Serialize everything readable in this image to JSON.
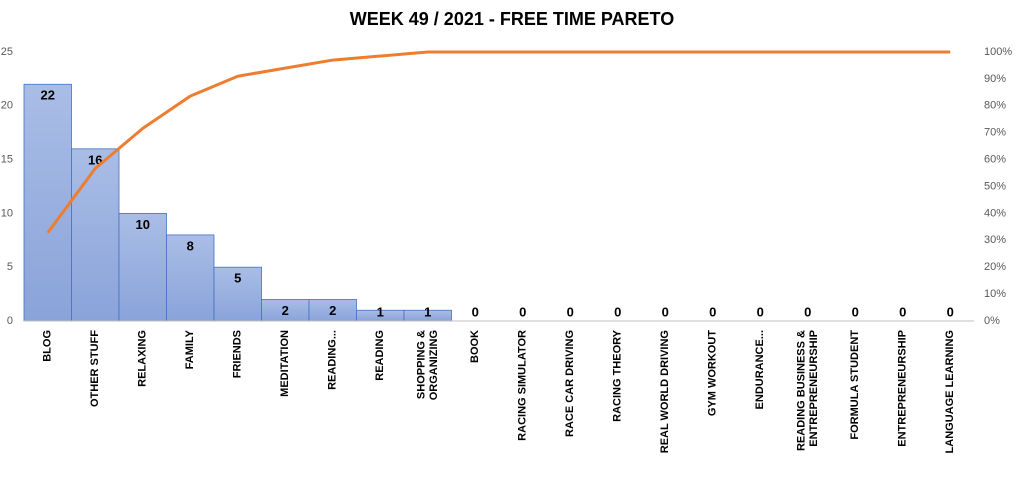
{
  "chart_data": {
    "type": "pareto",
    "title": "WEEK 49 / 2021 - FREE TIME PARETO",
    "categories": [
      "BLOG",
      "OTHER STUFF",
      "RELAXING",
      "FAMILY",
      "FRIENDS",
      "MEDITATION",
      "READING...",
      "READING",
      "SHOPPING &\nORGANIZING",
      "BOOK",
      "RACING SIMULATOR",
      "RACE CAR DRIVING",
      "RACING THEORY",
      "REAL WORLD DRIVING",
      "GYM WORKOUT",
      "ENDURANCE...",
      "READING BUSINESS &\nENTREPRENEURSHIP",
      "FORMULA STUDENT",
      "ENTREPRENEURSHIP",
      "LANGUAGE LEARNING"
    ],
    "series": [
      {
        "type": "bar",
        "color": "#8fa8dc",
        "values": [
          22,
          16,
          10,
          8,
          5,
          2,
          2,
          1,
          1,
          0,
          0,
          0,
          0,
          0,
          0,
          0,
          0,
          0,
          0,
          0
        ]
      },
      {
        "type": "line",
        "axis": "y2",
        "color": "#ed7d31",
        "values": [
          32.8,
          56.7,
          71.6,
          83.6,
          91.0,
          94.0,
          97.0,
          98.5,
          100,
          100,
          100,
          100,
          100,
          100,
          100,
          100,
          100,
          100,
          100,
          100
        ]
      }
    ],
    "ylim": [
      0,
      25
    ],
    "yticks": [
      0,
      5,
      10,
      15,
      20,
      25
    ],
    "y2lim": [
      0,
      100
    ],
    "y2ticks": [
      {
        "value": 0,
        "label": "0%"
      },
      {
        "value": 10,
        "label": "10%"
      },
      {
        "value": 20,
        "label": "20%"
      },
      {
        "value": 30,
        "label": "30%"
      },
      {
        "value": 40,
        "label": "40%"
      },
      {
        "value": 50,
        "label": "50%"
      },
      {
        "value": 60,
        "label": "60%"
      },
      {
        "value": 70,
        "label": "70%"
      },
      {
        "value": 80,
        "label": "80%"
      },
      {
        "value": 90,
        "label": "90%"
      },
      {
        "value": 100,
        "label": "100%"
      }
    ],
    "grid": false
  }
}
